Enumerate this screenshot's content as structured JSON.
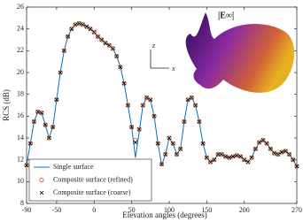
{
  "chart_data": {
    "type": "line",
    "x_label": "Elevation angles (degrees)",
    "y_label": "RCS (dB)",
    "xlim": [
      -90,
      270
    ],
    "xticks": [
      -90,
      -50,
      0,
      50,
      100,
      150,
      200,
      270
    ],
    "ylim": [
      8,
      26
    ],
    "yticks": [
      8,
      10,
      12,
      14,
      16,
      18,
      20,
      22,
      24,
      26
    ],
    "legend": "lower left",
    "annotations": [
      "|E∞|",
      "z",
      "x"
    ],
    "x": [
      -90,
      -85,
      -80,
      -75,
      -70,
      -65,
      -60,
      -55,
      -50,
      -45,
      -40,
      -35,
      -30,
      -25,
      -20,
      -15,
      -10,
      -5,
      0,
      5,
      10,
      15,
      20,
      25,
      30,
      35,
      40,
      45,
      50,
      55,
      60,
      65,
      70,
      75,
      80,
      85,
      90,
      95,
      100,
      105,
      110,
      115,
      120,
      125,
      130,
      135,
      140,
      145,
      150,
      155,
      160,
      165,
      170,
      175,
      180,
      185,
      190,
      195,
      200,
      205,
      210,
      215,
      220,
      225,
      230,
      235,
      240,
      245,
      250,
      255,
      260,
      265,
      270
    ],
    "series": [
      {
        "name": "Single surface",
        "color": "#0072bd",
        "marker": null,
        "values": [
          11.5,
          13.5,
          15.5,
          16.4,
          16.3,
          15.2,
          14.0,
          15.0,
          17.5,
          20.0,
          22.0,
          23.3,
          24.0,
          24.4,
          24.5,
          24.4,
          24.2,
          24.0,
          23.7,
          23.3,
          23.0,
          22.7,
          22.5,
          22.2,
          21.5,
          20.5,
          19.0,
          17.0,
          15.0,
          12.2,
          14.5,
          17.0,
          17.7,
          17.5,
          16.0,
          13.5,
          11.5,
          12.5,
          14.0,
          13.5,
          12.5,
          13.0,
          15.5,
          17.5,
          17.7,
          17.0,
          15.5,
          13.5,
          12.2,
          11.8,
          12.0,
          12.5,
          12.5,
          12.3,
          12.2,
          12.3,
          12.4,
          12.3,
          12.0,
          11.8,
          12.2,
          13.0,
          13.6,
          13.8,
          13.5,
          13.0,
          12.6,
          12.5,
          12.7,
          12.8,
          12.5,
          12.0,
          11.4
        ]
      },
      {
        "name": "Composite surface (refined)",
        "color": "#d95319",
        "marker": "o",
        "values": [
          11.5,
          13.5,
          15.5,
          16.4,
          16.3,
          15.2,
          14.0,
          15.0,
          17.5,
          20.0,
          22.0,
          23.3,
          24.0,
          24.4,
          24.5,
          24.4,
          24.2,
          24.0,
          23.7,
          23.3,
          23.0,
          22.7,
          22.5,
          22.2,
          21.5,
          20.5,
          19.0,
          17.0,
          15.0,
          13.8,
          14.8,
          17.0,
          17.7,
          17.5,
          16.0,
          13.5,
          11.6,
          12.5,
          14.0,
          13.5,
          12.5,
          13.0,
          15.5,
          17.5,
          17.7,
          17.0,
          15.5,
          13.5,
          12.2,
          11.8,
          12.0,
          12.5,
          12.5,
          12.3,
          12.2,
          12.3,
          12.4,
          12.3,
          12.0,
          11.8,
          12.2,
          13.0,
          13.6,
          13.8,
          13.5,
          13.0,
          12.6,
          12.5,
          12.7,
          12.8,
          12.5,
          12.0,
          11.4
        ]
      },
      {
        "name": "Composite surface (coarse)",
        "color": "#000000",
        "marker": "x",
        "values": [
          11.5,
          13.5,
          15.5,
          16.4,
          16.3,
          15.2,
          14.0,
          15.0,
          17.5,
          20.0,
          22.0,
          23.3,
          24.0,
          24.4,
          24.5,
          24.4,
          24.2,
          24.0,
          23.7,
          23.3,
          23.0,
          22.7,
          22.5,
          22.2,
          21.5,
          20.5,
          19.0,
          17.0,
          15.0,
          13.6,
          14.8,
          17.0,
          17.7,
          17.5,
          16.0,
          13.5,
          11.6,
          12.5,
          14.0,
          13.5,
          12.5,
          13.0,
          15.5,
          17.5,
          17.7,
          17.0,
          15.5,
          13.5,
          12.2,
          11.8,
          12.0,
          12.5,
          12.5,
          12.3,
          12.2,
          12.3,
          12.4,
          12.3,
          12.0,
          11.8,
          12.2,
          13.0,
          13.6,
          13.8,
          13.5,
          13.0,
          12.6,
          12.5,
          12.7,
          12.8,
          12.5,
          12.0,
          11.4
        ]
      }
    ]
  }
}
